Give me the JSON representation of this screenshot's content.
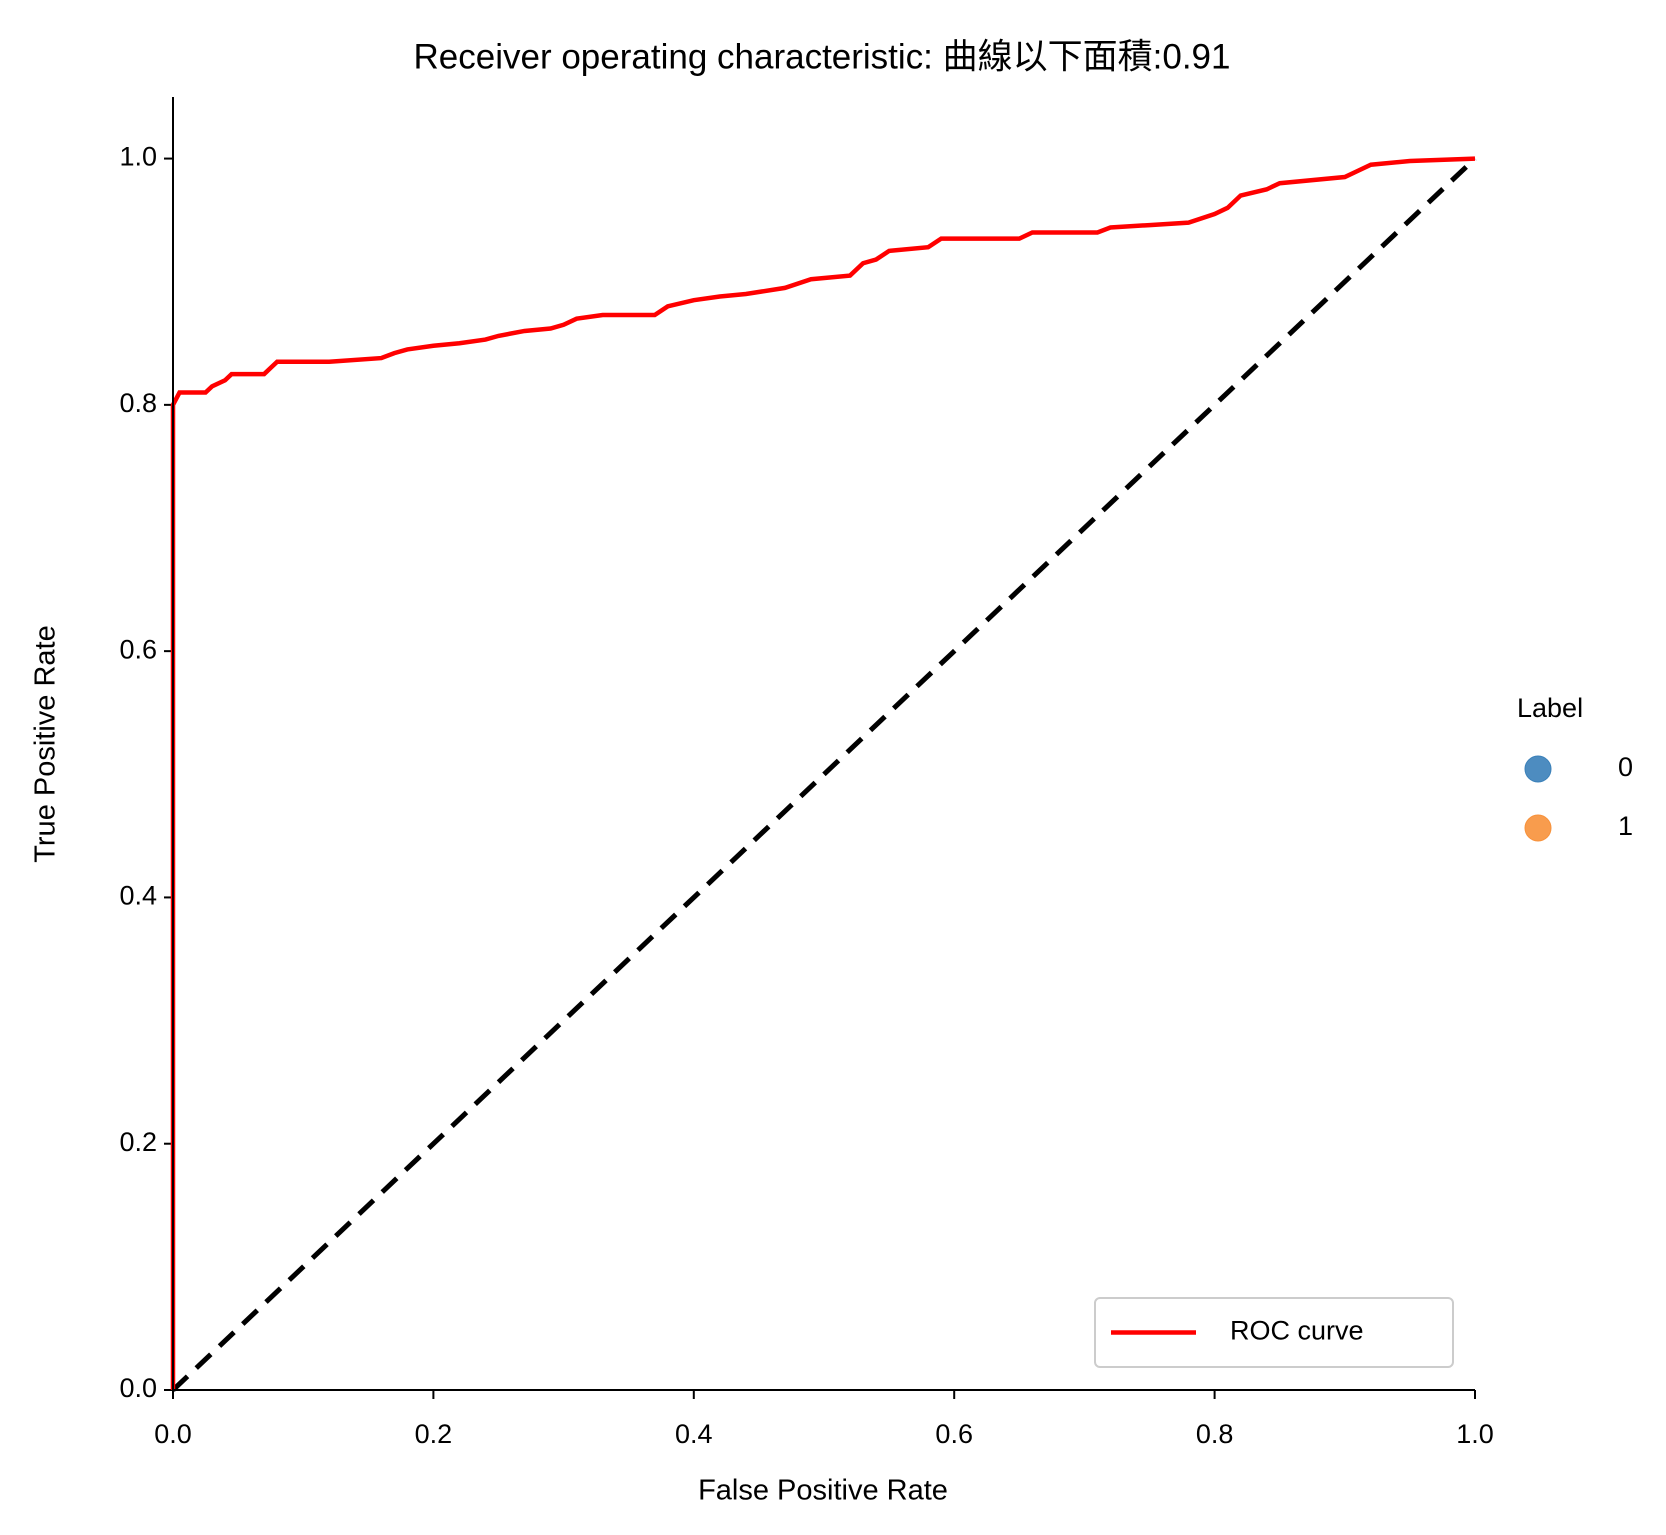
{
  "chart_data": {
    "type": "line",
    "title": "Receiver operating characteristic: 曲線以下面積:0.91",
    "x_label": "False Positive Rate",
    "y_label": "True Positive Rate",
    "xlim": [
      0,
      1
    ],
    "ylim": [
      0,
      1.05
    ],
    "xticks": [
      {
        "value": 0,
        "label": "0.0"
      },
      0.2,
      0.4,
      0.6,
      0.8,
      {
        "value": 1,
        "label": "1.0"
      }
    ],
    "yticks": [
      {
        "value": 0,
        "label": "0.0"
      },
      0.2,
      0.4,
      0.6,
      0.8,
      {
        "value": 1,
        "label": "1.0"
      }
    ],
    "legend_position": "lower right",
    "series": [
      {
        "name": "ROC curve",
        "color": "#ff0000",
        "x": [
          0,
          0,
          0.005,
          0.025,
          0.03,
          0.04,
          0.045,
          0.07,
          0.075,
          0.08,
          0.12,
          0.16,
          0.17,
          0.18,
          0.2,
          0.22,
          0.24,
          0.25,
          0.27,
          0.29,
          0.3,
          0.31,
          0.33,
          0.37,
          0.38,
          0.4,
          0.42,
          0.44,
          0.47,
          0.49,
          0.52,
          0.53,
          0.54,
          0.55,
          0.58,
          0.59,
          0.65,
          0.66,
          0.71,
          0.72,
          0.75,
          0.78,
          0.8,
          0.81,
          0.82,
          0.84,
          0.85,
          0.9,
          0.91,
          0.92,
          0.95,
          1.0
        ],
        "values": [
          0,
          0.8,
          0.81,
          0.81,
          0.815,
          0.82,
          0.825,
          0.825,
          0.83,
          0.835,
          0.835,
          0.838,
          0.842,
          0.845,
          0.848,
          0.85,
          0.853,
          0.856,
          0.86,
          0.862,
          0.865,
          0.87,
          0.873,
          0.873,
          0.88,
          0.885,
          0.888,
          0.89,
          0.895,
          0.902,
          0.905,
          0.915,
          0.918,
          0.925,
          0.928,
          0.935,
          0.935,
          0.94,
          0.94,
          0.944,
          0.946,
          0.948,
          0.955,
          0.96,
          0.97,
          0.975,
          0.98,
          0.985,
          0.99,
          0.995,
          0.998,
          1.0
        ]
      }
    ],
    "reference_line": {
      "color": "#000000",
      "x": [
        0,
        1
      ],
      "values": [
        0,
        1
      ]
    },
    "hue_legend": {
      "title": "Label",
      "entries": [
        {
          "label": "0",
          "color": "#3a80b9"
        },
        {
          "label": "1",
          "color": "#f7913a"
        }
      ]
    }
  }
}
